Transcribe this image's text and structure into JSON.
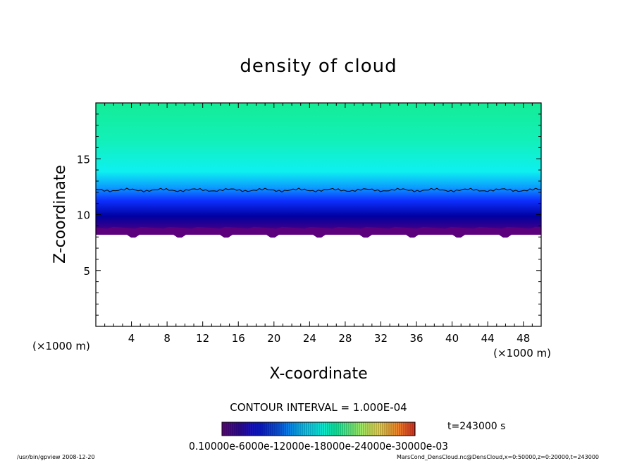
{
  "chart_data": {
    "type": "heatmap",
    "title": "density of cloud",
    "xlabel": "X-coordinate",
    "ylabel": "Z-coordinate",
    "x_unit": "(×1000 m)",
    "y_unit": "(×1000 m)",
    "xlim": [
      0,
      50
    ],
    "ylim": [
      0,
      20
    ],
    "x_ticks": [
      4,
      8,
      12,
      16,
      20,
      24,
      28,
      32,
      36,
      40,
      44,
      48
    ],
    "y_ticks": [
      5,
      10,
      15
    ],
    "cloud_base_z": 8.2,
    "contour_line_z": 12.2,
    "contour_interval": "CONTOUR INTERVAL = 1.000E-04",
    "time_label": "t=243000 s",
    "colorbar_labels": "0.10000e-6000e-12000e-18000e-24000e-30000e-03",
    "colorbar_stops": [
      "#5b0a7a",
      "#2a0a9a",
      "#0a1ad0",
      "#0a5ae0",
      "#0ab0f0",
      "#10e8e0",
      "#10ec9c",
      "#90ee70",
      "#e0d850",
      "#f09030",
      "#e03020"
    ],
    "field_colors": [
      "#5c007e",
      "#0000a0",
      "#0d30ff",
      "#0c9cff",
      "#0ef0f0",
      "#12f0b8",
      "#14ec96"
    ]
  },
  "footer": {
    "left": "/usr/bin/gpview   2008-12-20",
    "right": "MarsCond_DensCloud.nc@DensCloud,x=0:50000,z=0:20000,t=243000"
  }
}
